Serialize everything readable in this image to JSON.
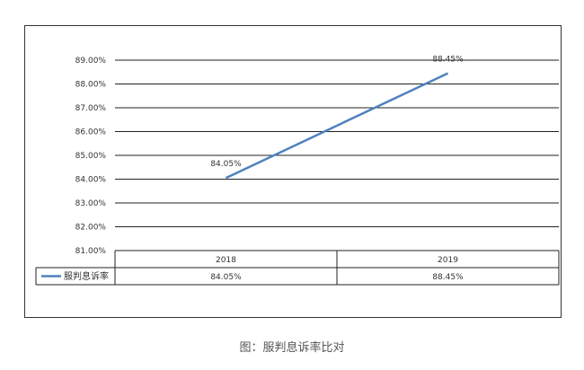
{
  "caption": "图：服判息诉率比对",
  "chart_data": {
    "type": "line",
    "categories": [
      "2018",
      "2019"
    ],
    "series": [
      {
        "name": "服判息诉率",
        "values": [
          84.05,
          88.45
        ],
        "labels": [
          "84.05%",
          "88.45%"
        ],
        "color": "#4f81bd"
      }
    ],
    "ylim": [
      81,
      89
    ],
    "yticks": [
      "81.00%",
      "82.00%",
      "83.00%",
      "84.00%",
      "85.00%",
      "86.00%",
      "87.00%",
      "88.00%",
      "89.00%"
    ],
    "grid": true,
    "data_table": true,
    "title": "",
    "xlabel": "",
    "ylabel": ""
  }
}
